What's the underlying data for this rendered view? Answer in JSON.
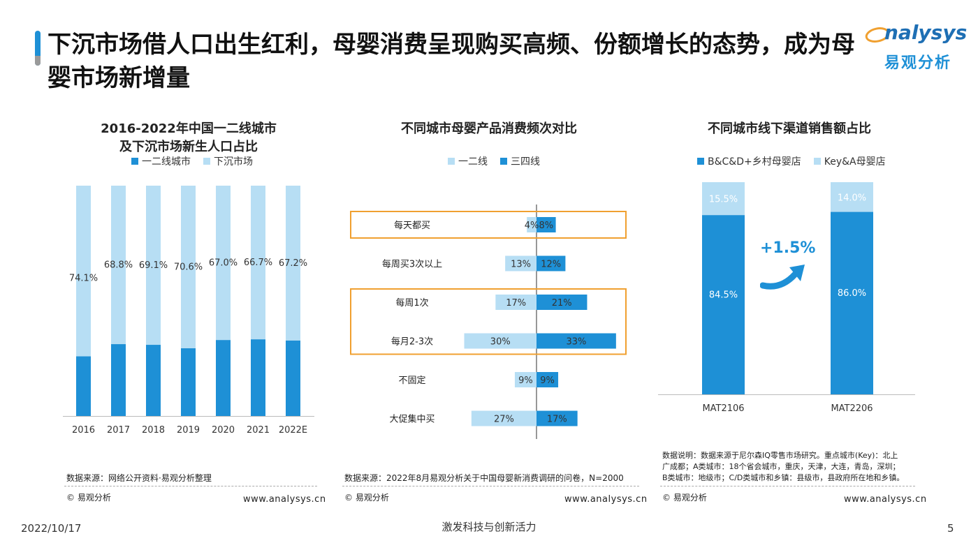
{
  "header": {
    "title": "下沉市场借人口出生红利，母婴消费呈现购买高频、份额增长的态势，成为母婴市场新增量",
    "logo_en": "nalysys",
    "logo_cn": "易观分析"
  },
  "colors": {
    "dark_blue": "#1e90d6",
    "light_blue": "#b7def4",
    "orange": "#f0a030",
    "accent": "#1e90d6"
  },
  "panels": {
    "left": {
      "title_line1": "2016-2022年中国一二线城市",
      "title_line2": "及下沉市场新生人口占比",
      "source": "数据来源：网络公开资料·易观分析整理",
      "copyright": "© 易观分析",
      "website": "www.analysys.cn"
    },
    "middle": {
      "title": "不同城市母婴产品消费频次对比",
      "source": "数据来源：2022年8月易观分析关于中国母婴新消费调研的问卷，N=2000",
      "copyright": "© 易观分析",
      "website": "www.analysys.cn"
    },
    "right": {
      "title": "不同城市线下渠道销售额占比",
      "growth_label": "+1.5%",
      "note_line1": "数据说明：数据来源于尼尔森IQ零售市场研究。重点城市(Key)：北上",
      "note_line2": "广成都；A类城市：18个省会城市，重庆，天津，大连，青岛，深圳；",
      "note_line3": "B类城市：地级市；C/D类城市和乡镇：县级市，县政府所在地和乡镇。",
      "copyright": "© 易观分析",
      "website": "www.analysys.cn"
    }
  },
  "chart_data": [
    {
      "type": "bar",
      "stacked": true,
      "title": "2016-2022年中国一二线城市及下沉市场新生人口占比",
      "categories": [
        "2016",
        "2017",
        "2018",
        "2019",
        "2020",
        "2021",
        "2022E"
      ],
      "series": [
        {
          "name": "一二线城市",
          "color": "#1e90d6",
          "values": [
            25.9,
            31.2,
            30.9,
            29.4,
            33.0,
            33.3,
            32.8
          ]
        },
        {
          "name": "下沉市场",
          "color": "#b7def4",
          "values": [
            74.1,
            68.8,
            69.1,
            70.6,
            67.0,
            66.7,
            67.2
          ],
          "labels": [
            "74.1%",
            "68.8%",
            "69.1%",
            "70.6%",
            "67.0%",
            "66.7%",
            "67.2%"
          ]
        }
      ],
      "ylim": [
        0,
        100
      ],
      "legend": "top"
    },
    {
      "type": "bar",
      "orientation": "horizontal-diverging",
      "title": "不同城市母婴产品消费频次对比",
      "categories": [
        "每天都买",
        "每周买3次以上",
        "每周1次",
        "每月2-3次",
        "不固定",
        "大促集中买"
      ],
      "series": [
        {
          "name": "一二线",
          "color": "#b7def4",
          "values": [
            4,
            13,
            17,
            30,
            9,
            27
          ],
          "labels": [
            "4%",
            "13%",
            "17%",
            "30%",
            "9%",
            "27%"
          ]
        },
        {
          "name": "三四线",
          "color": "#1e90d6",
          "values": [
            8,
            12,
            21,
            33,
            9,
            17
          ],
          "labels": [
            "8%",
            "12%",
            "21%",
            "33%",
            "9%",
            "17%"
          ]
        }
      ],
      "highlighted_groups": [
        [
          "每天都买"
        ],
        [
          "每周1次",
          "每月2-3次"
        ]
      ],
      "legend": "top"
    },
    {
      "type": "bar",
      "stacked": true,
      "title": "不同城市线下渠道销售额占比",
      "categories": [
        "MAT2106",
        "MAT2206"
      ],
      "series": [
        {
          "name": "B&C&D+乡村母婴店",
          "color": "#1e90d6",
          "values": [
            84.5,
            86.0
          ],
          "labels": [
            "84.5%",
            "86.0%"
          ]
        },
        {
          "name": "Key&A母婴店",
          "color": "#b7def4",
          "values": [
            15.5,
            14.0
          ],
          "labels": [
            "15.5%",
            "14.0%"
          ]
        }
      ],
      "ylim": [
        0,
        100
      ],
      "legend": "top"
    }
  ],
  "footer": {
    "date": "2022/10/17",
    "slogan": "激发科技与创新活力",
    "page": "5"
  }
}
